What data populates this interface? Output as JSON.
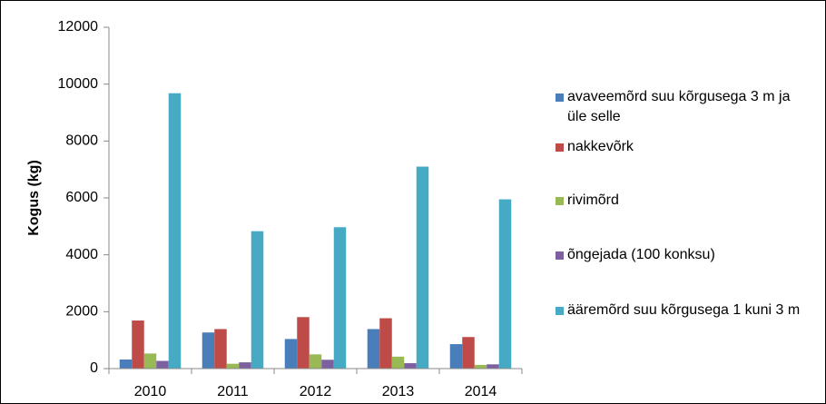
{
  "chart_data": {
    "type": "bar",
    "y_label": "Kogus (kg)",
    "categories": [
      "2010",
      "2011",
      "2012",
      "2013",
      "2014"
    ],
    "series": [
      {
        "name": "avaveemõrd suu kõrgusega 3 m ja üle selle",
        "color": "#4a7ebb",
        "values": [
          320,
          1270,
          1040,
          1390,
          860
        ]
      },
      {
        "name": "nakkevõrk",
        "color": "#be4b48",
        "values": [
          1690,
          1390,
          1810,
          1770,
          1110
        ]
      },
      {
        "name": "rivimõrd",
        "color": "#98b954",
        "values": [
          530,
          170,
          500,
          420,
          130
        ]
      },
      {
        "name": "õngejada (100 konksu)",
        "color": "#7d60a0",
        "values": [
          270,
          220,
          310,
          190,
          150
        ]
      },
      {
        "name": "ääremõrd suu kõrgusega 1 kuni 3 m",
        "color": "#46aac5",
        "values": [
          9680,
          4830,
          4970,
          7100,
          5950
        ]
      }
    ],
    "ylim": [
      0,
      12000
    ],
    "yticks": [
      0,
      2000,
      4000,
      6000,
      8000,
      10000,
      12000
    ],
    "grid": false,
    "legend": "right"
  }
}
